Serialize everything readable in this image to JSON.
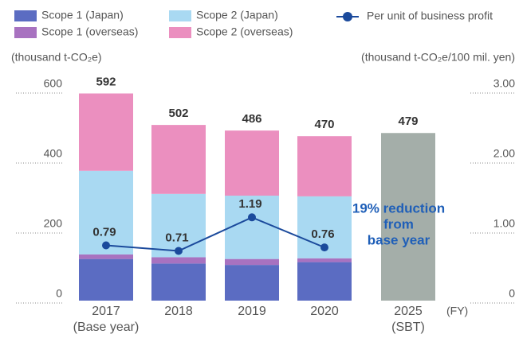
{
  "chart_data": {
    "type": "bar",
    "stacked": true,
    "categories": [
      "2017",
      "2018",
      "2019",
      "2020",
      "2025"
    ],
    "category_sublabels": [
      "(Base year)",
      null,
      null,
      null,
      "(SBT)"
    ],
    "x_unit": "(FY)",
    "y_label": "(thousand t-CO₂e)",
    "y2_label": "(thousand t-CO₂e/100 mil. yen)",
    "series": [
      {
        "name": "Scope 1 (Japan)",
        "color": "#5b6cc2",
        "values": [
          119,
          106,
          102,
          110,
          null
        ]
      },
      {
        "name": "Scope 1 (overseas)",
        "color": "#a872c0",
        "values": [
          13,
          18,
          17,
          11,
          null
        ]
      },
      {
        "name": "Scope 2 (Japan)",
        "color": "#a9d9f2",
        "values": [
          239,
          181,
          181,
          177,
          null
        ]
      },
      {
        "name": "Scope 2 (overseas)",
        "color": "#eb8fbf",
        "values": [
          221,
          197,
          186,
          172,
          null
        ]
      },
      {
        "name": "Per unit of business profit",
        "type": "line",
        "axis": "y2",
        "color": "#1b4a9c",
        "values": [
          0.79,
          0.71,
          1.19,
          0.76,
          null
        ]
      }
    ],
    "totals": [
      592,
      502,
      486,
      470,
      null
    ],
    "target": {
      "color": "#a4aea9",
      "values": [
        null,
        null,
        null,
        null,
        479
      ]
    },
    "annotation": [
      "19% reduction",
      "from",
      "base year"
    ],
    "ylim": [
      0,
      600
    ],
    "yticks": [
      0,
      200,
      400,
      600
    ],
    "y2lim": [
      0,
      3
    ],
    "y2ticks": [
      0,
      {
        "value": 1,
        "label": "1.00"
      },
      {
        "value": 2,
        "label": "2.00"
      },
      {
        "value": 3,
        "label": "3.00"
      }
    ]
  }
}
